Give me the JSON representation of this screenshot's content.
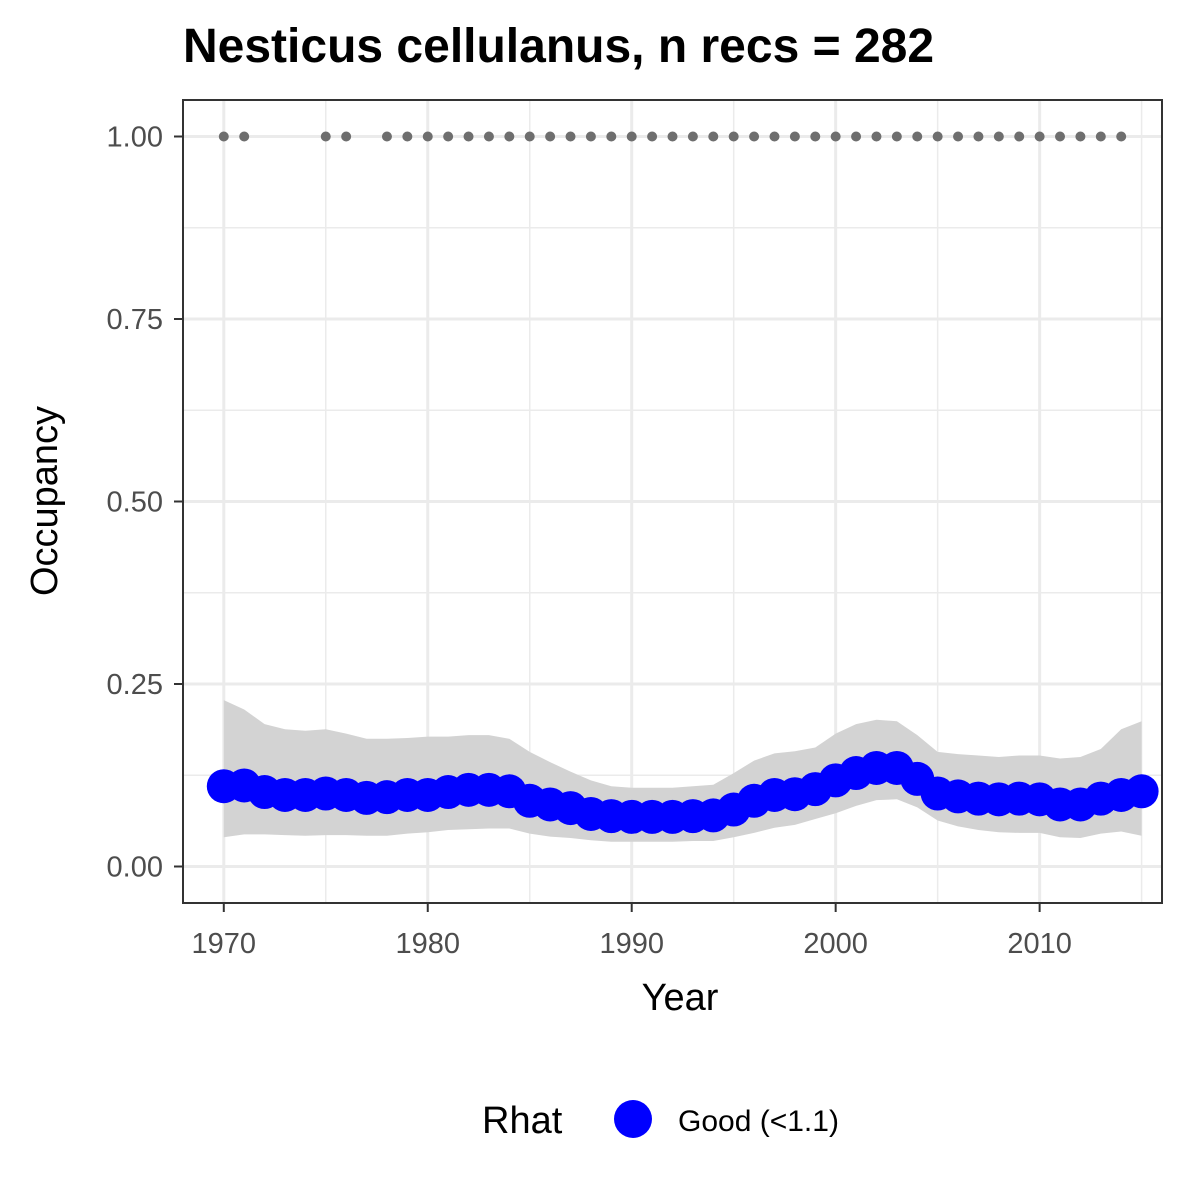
{
  "chart_data": {
    "type": "line",
    "title": "Nesticus cellulanus, n recs = 282",
    "xlabel": "Year",
    "ylabel": "Occupancy",
    "xlim": [
      1968,
      2016
    ],
    "ylim": [
      -0.05,
      1.05
    ],
    "x_ticks": [
      1970,
      1980,
      1990,
      2000,
      2010
    ],
    "x_tick_labels": [
      "1970",
      "1980",
      "1990",
      "2000",
      "2010"
    ],
    "y_ticks": [
      0,
      0.25,
      0.5,
      0.75,
      1.0
    ],
    "y_tick_labels": [
      "0.00",
      "0.25",
      "0.50",
      "0.75",
      "1.00"
    ],
    "grid": true,
    "legend": {
      "title": "Rhat",
      "position": "bottom",
      "entries": [
        {
          "label": "Good (<1.1)",
          "color": "#0000ff"
        }
      ]
    },
    "colors": {
      "points": "#0000ff",
      "ribbon": "#d3d3d3",
      "records": "#6e6e6e",
      "grid": "#ebebeb",
      "panel_border": "#333333"
    },
    "x": [
      1970,
      1971,
      1972,
      1973,
      1974,
      1975,
      1976,
      1977,
      1978,
      1979,
      1980,
      1981,
      1982,
      1983,
      1984,
      1985,
      1986,
      1987,
      1988,
      1989,
      1990,
      1991,
      1992,
      1993,
      1994,
      1995,
      1996,
      1997,
      1998,
      1999,
      2000,
      2001,
      2002,
      2003,
      2004,
      2005,
      2006,
      2007,
      2008,
      2009,
      2010,
      2011,
      2012,
      2013,
      2014,
      2015
    ],
    "series": [
      {
        "name": "Good (<1.1)",
        "values": [
          0.11,
          0.111,
          0.102,
          0.098,
          0.098,
          0.1,
          0.098,
          0.094,
          0.095,
          0.098,
          0.098,
          0.102,
          0.105,
          0.105,
          0.103,
          0.09,
          0.085,
          0.08,
          0.072,
          0.069,
          0.068,
          0.068,
          0.068,
          0.069,
          0.07,
          0.078,
          0.09,
          0.098,
          0.099,
          0.106,
          0.118,
          0.128,
          0.135,
          0.135,
          0.12,
          0.1,
          0.096,
          0.093,
          0.092,
          0.093,
          0.092,
          0.085,
          0.085,
          0.093,
          0.098,
          0.103
        ]
      }
    ],
    "ribbon": {
      "lower": [
        0.04,
        0.044,
        0.044,
        0.043,
        0.042,
        0.043,
        0.043,
        0.042,
        0.042,
        0.045,
        0.047,
        0.05,
        0.051,
        0.052,
        0.052,
        0.045,
        0.041,
        0.039,
        0.036,
        0.034,
        0.034,
        0.034,
        0.034,
        0.035,
        0.035,
        0.04,
        0.046,
        0.053,
        0.057,
        0.065,
        0.073,
        0.083,
        0.091,
        0.092,
        0.081,
        0.063,
        0.055,
        0.05,
        0.047,
        0.046,
        0.046,
        0.04,
        0.039,
        0.045,
        0.048,
        0.042
      ],
      "upper": [
        0.228,
        0.215,
        0.195,
        0.188,
        0.186,
        0.188,
        0.182,
        0.175,
        0.175,
        0.176,
        0.178,
        0.178,
        0.18,
        0.18,
        0.175,
        0.157,
        0.143,
        0.13,
        0.118,
        0.11,
        0.108,
        0.108,
        0.108,
        0.11,
        0.112,
        0.128,
        0.145,
        0.155,
        0.158,
        0.163,
        0.182,
        0.195,
        0.201,
        0.199,
        0.18,
        0.157,
        0.154,
        0.152,
        0.15,
        0.152,
        0.152,
        0.148,
        0.15,
        0.161,
        0.188,
        0.199
      ]
    },
    "records": {
      "x": [
        1970,
        1971,
        1975,
        1976,
        1978,
        1979,
        1980,
        1981,
        1982,
        1983,
        1984,
        1985,
        1986,
        1987,
        1988,
        1989,
        1990,
        1991,
        1992,
        1993,
        1994,
        1995,
        1996,
        1997,
        1998,
        1999,
        2000,
        2001,
        2002,
        2003,
        2004,
        2005,
        2006,
        2007,
        2008,
        2009,
        2010,
        2011,
        2012,
        2013,
        2014
      ],
      "y": 1.0
    }
  }
}
